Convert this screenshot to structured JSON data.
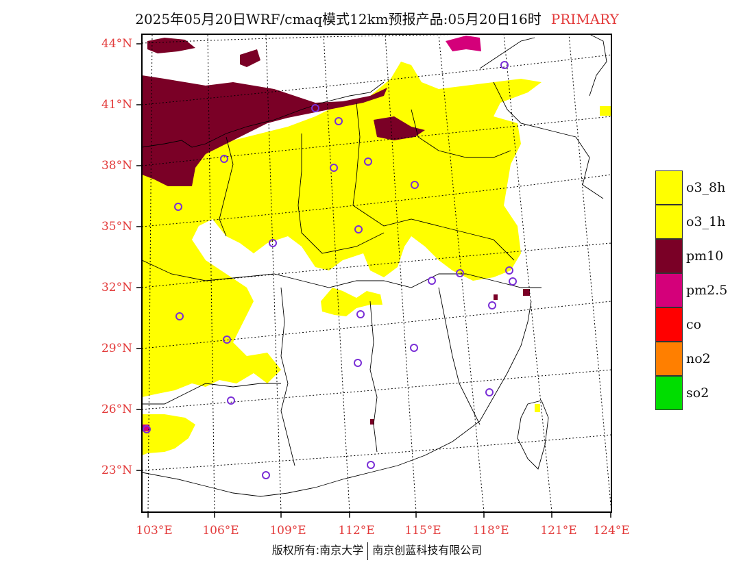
{
  "title": {
    "main": "2025年05月20日WRF/cmaq模式12km预报产品:05月20日16时",
    "primary": "PRIMARY"
  },
  "lat_labels": [
    "44°N",
    "41°N",
    "38°N",
    "35°N",
    "32°N",
    "29°N",
    "26°N",
    "23°N"
  ],
  "lon_labels": [
    "103°E",
    "106°E",
    "109°E",
    "112°E",
    "115°E",
    "118°E",
    "121°E",
    "124°E"
  ],
  "legend": [
    {
      "label": "o3_8h",
      "color": "#ffff00"
    },
    {
      "label": "o3_1h",
      "color": "#ffff00"
    },
    {
      "label": "pm10",
      "color": "#7a0026"
    },
    {
      "label": "pm2.5",
      "color": "#d4007a"
    },
    {
      "label": "co",
      "color": "#ff0000"
    },
    {
      "label": "no2",
      "color": "#ff7f00"
    },
    {
      "label": "so2",
      "color": "#00dd00"
    }
  ],
  "copyright": {
    "left": "版权所有:南京大学",
    "right": "南京创蓝科技有限公司"
  },
  "colors": {
    "axis_label": "#e33b3b",
    "o3": "#ffff00",
    "pm10": "#7a0026",
    "pm25": "#d4007a",
    "station": "#7a2fd6"
  }
}
